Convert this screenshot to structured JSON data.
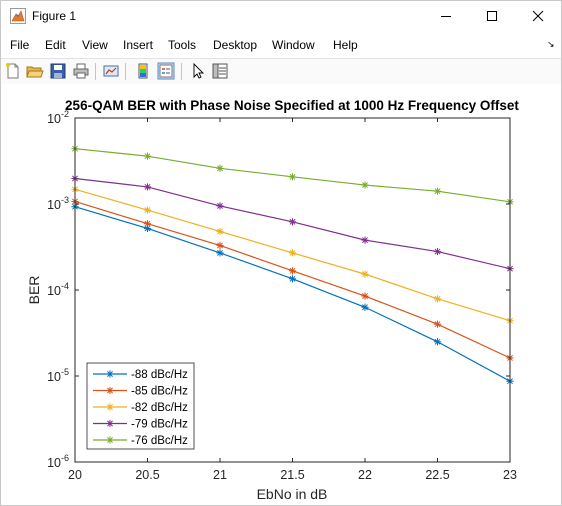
{
  "window": {
    "title": "Figure 1"
  },
  "menu": {
    "items": [
      "File",
      "Edit",
      "View",
      "Insert",
      "Tools",
      "Desktop",
      "Window",
      "Help"
    ]
  },
  "toolbar": {
    "icons": [
      "new-figure-icon",
      "open-file-icon",
      "save-icon",
      "print-icon",
      "link-plot-icon",
      "colorbar-icon",
      "legend-icon",
      "edit-plot-icon",
      "property-inspector-icon"
    ]
  },
  "chart_data": {
    "type": "line",
    "title": "256-QAM BER with Phase Noise Specified at 1000 Hz  Frequency Offset",
    "xlabel": "EbNo in dB",
    "ylabel": "BER",
    "xlim": [
      20,
      23
    ],
    "ylim": [
      1e-06,
      0.01
    ],
    "yscale": "log",
    "grid": true,
    "legend_position": "bottom-left",
    "x": [
      20,
      20.5,
      21,
      21.5,
      22,
      22.5,
      23
    ],
    "x_ticks": [
      "20",
      "20.5",
      "21",
      "21.5",
      "22",
      "22.5",
      "23"
    ],
    "y_ticks": [
      {
        "base": "10",
        "exp": "-6"
      },
      {
        "base": "10",
        "exp": "-5"
      },
      {
        "base": "10",
        "exp": "-4"
      },
      {
        "base": "10",
        "exp": "-3"
      },
      {
        "base": "10",
        "exp": "-2"
      }
    ],
    "series": [
      {
        "name": "-88 dBc/Hz",
        "color": "#0072BD",
        "values": [
          0.00093,
          0.00052,
          0.00027,
          0.000135,
          6.3e-05,
          2.5e-05,
          8.7e-06
        ]
      },
      {
        "name": "-85 dBc/Hz",
        "color": "#D95319",
        "values": [
          0.00107,
          0.00059,
          0.00033,
          0.000167,
          8.5e-05,
          4e-05,
          1.62e-05
        ]
      },
      {
        "name": "-82 dBc/Hz",
        "color": "#EDB120",
        "values": [
          0.00148,
          0.00085,
          0.00048,
          0.00027,
          0.000153,
          7.9e-05,
          4.4e-05
        ]
      },
      {
        "name": "-79 dBc/Hz",
        "color": "#7E2F8E",
        "values": [
          0.00198,
          0.00158,
          0.00095,
          0.00062,
          0.00038,
          0.00028,
          0.000177
        ]
      },
      {
        "name": "-76 dBc/Hz",
        "color": "#77AC30",
        "values": [
          0.0044,
          0.0036,
          0.0026,
          0.00207,
          0.00166,
          0.00141,
          0.00106
        ]
      }
    ]
  }
}
